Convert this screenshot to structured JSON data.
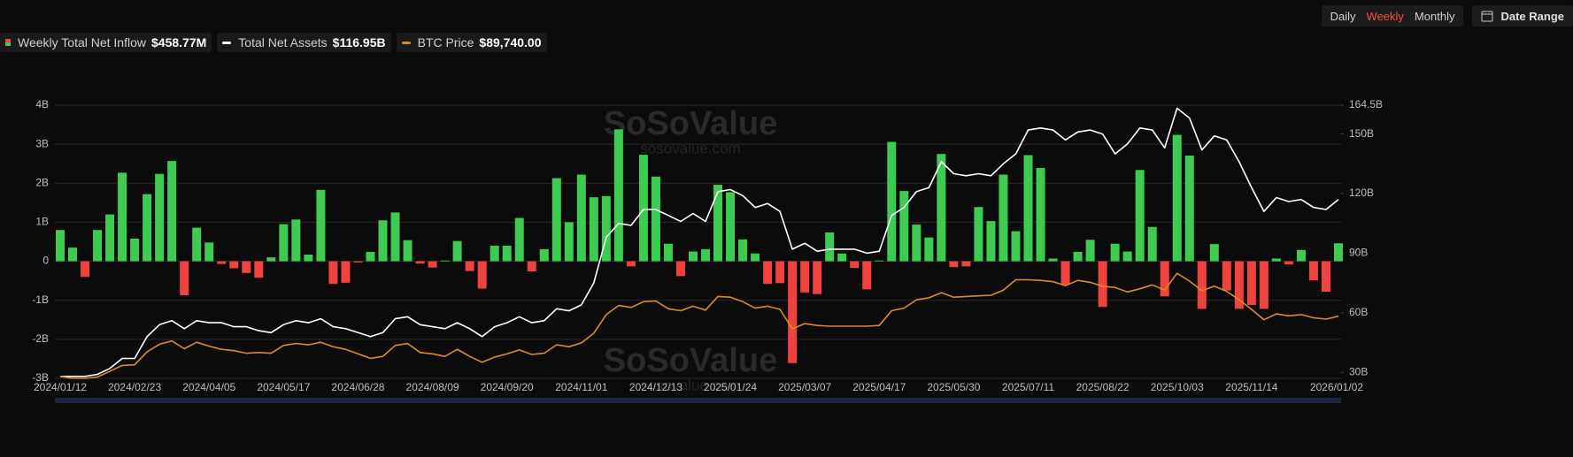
{
  "ui": {
    "periods": [
      "Daily",
      "Weekly",
      "Monthly"
    ],
    "active_period": 1,
    "date_range": "Date Range"
  },
  "chart_data": {
    "type": "combo",
    "watermark": [
      "SoSoValue",
      "sosovalue.com"
    ],
    "categories": [
      "2024/01/12",
      null,
      null,
      null,
      null,
      null,
      "2024/02/23",
      null,
      null,
      null,
      null,
      null,
      "2024/04/05",
      null,
      null,
      null,
      null,
      null,
      "2024/05/17",
      null,
      null,
      null,
      null,
      null,
      "2024/06/28",
      null,
      null,
      null,
      null,
      null,
      "2024/08/09",
      null,
      null,
      null,
      null,
      null,
      "2024/09/20",
      null,
      null,
      null,
      null,
      null,
      "2024/11/01",
      null,
      null,
      null,
      null,
      null,
      "2024/12/13",
      null,
      null,
      null,
      null,
      null,
      "2025/01/24",
      null,
      null,
      null,
      null,
      null,
      "2025/03/07",
      null,
      null,
      null,
      null,
      null,
      "2025/04/17",
      null,
      null,
      null,
      null,
      null,
      "2025/05/30",
      null,
      null,
      null,
      null,
      null,
      "2025/07/11",
      null,
      null,
      null,
      null,
      null,
      "2025/08/22",
      null,
      null,
      null,
      null,
      null,
      "2025/10/03",
      null,
      null,
      null,
      null,
      null,
      "2025/11/14",
      null,
      null,
      null,
      null,
      null,
      null,
      "2026/01/02"
    ],
    "ylim": [
      -3,
      4
    ],
    "yticks": [
      {
        "value": -3,
        "label": "-3B"
      },
      {
        "value": -2,
        "label": "-2B"
      },
      {
        "value": -1,
        "label": "-1B"
      },
      0,
      {
        "value": 1,
        "label": "1B"
      },
      {
        "value": 2,
        "label": "2B"
      },
      {
        "value": 3,
        "label": "3B"
      },
      {
        "value": 4,
        "label": "4B"
      }
    ],
    "y2lim": [
      27,
      164.5
    ],
    "y2ticks": [
      {
        "value": 30,
        "label": "30B"
      },
      {
        "value": 60,
        "label": "60B"
      },
      {
        "value": 90,
        "label": "90B"
      },
      {
        "value": 120,
        "label": "120B"
      },
      {
        "value": 150,
        "label": "150B"
      },
      {
        "value": 164.5,
        "label": "164.5B"
      }
    ],
    "y3lim": [
      41500,
      253500
    ],
    "grid": true,
    "series": [
      {
        "name": "Weekly Total Net Inflow",
        "legend_value": "$458.77M",
        "type": "bar",
        "color": "#3dcc4f",
        "negative_color": "#f0433f",
        "values": [
          0.8,
          0.35,
          -0.4,
          0.8,
          1.2,
          2.27,
          0.58,
          1.72,
          2.24,
          2.57,
          -0.87,
          0.86,
          0.48,
          -0.07,
          -0.18,
          -0.3,
          -0.42,
          0.1,
          0.95,
          1.07,
          0.17,
          1.83,
          -0.58,
          -0.55,
          -0.03,
          0.24,
          1.05,
          1.25,
          0.54,
          -0.06,
          -0.16,
          0.02,
          0.52,
          -0.25,
          -0.7,
          0.4,
          0.4,
          1.11,
          -0.26,
          0.31,
          2.13,
          1.0,
          2.22,
          1.64,
          1.67,
          3.38,
          -0.13,
          2.73,
          2.17,
          0.45,
          -0.38,
          0.25,
          0.31,
          1.96,
          1.77,
          0.56,
          0.2,
          -0.58,
          -0.56,
          -2.61,
          -0.8,
          -0.84,
          0.74,
          0.2,
          -0.17,
          -0.72,
          0.02,
          3.06,
          1.8,
          0.94,
          0.61,
          2.75,
          -0.15,
          -0.13,
          1.39,
          1.03,
          2.22,
          0.77,
          2.72,
          2.39,
          0.07,
          -0.6,
          0.24,
          0.55,
          -1.17,
          0.45,
          0.25,
          2.34,
          0.88,
          -0.9,
          3.24,
          2.71,
          -1.22,
          0.44,
          -0.75,
          -1.22,
          -1.12,
          -1.22,
          0.07,
          -0.08,
          0.29,
          -0.49,
          -0.78,
          0.46
        ]
      },
      {
        "name": "Total Net Assets",
        "legend_value": "$116.95B",
        "type": "line",
        "axis": "y2",
        "color": "#ffffff",
        "values": [
          28,
          28,
          28,
          29,
          32,
          37,
          37,
          48,
          54,
          56,
          52,
          56,
          55,
          55,
          53,
          53,
          51,
          50,
          54,
          56,
          55,
          57,
          53,
          52,
          50,
          48,
          50,
          57,
          58,
          54,
          53,
          52,
          55,
          52,
          48,
          53,
          55,
          58,
          55,
          56,
          62,
          61,
          64,
          75,
          98,
          105,
          104,
          112,
          112,
          109,
          106,
          110,
          106,
          121,
          122,
          119,
          113,
          115,
          111,
          92,
          95,
          91,
          92,
          92,
          92,
          90,
          91,
          109,
          113,
          121,
          123,
          136,
          130,
          129,
          130,
          129,
          135,
          140,
          152,
          153,
          152,
          147,
          151,
          152,
          150,
          140,
          145,
          153,
          152,
          143,
          163,
          158,
          142,
          149,
          147,
          136,
          123,
          111,
          118,
          116,
          117,
          113,
          112,
          117
        ]
      },
      {
        "name": "BTC Price",
        "legend_value": "$89,740.00",
        "type": "line",
        "axis": "y3",
        "color": "#d98c26",
        "values": [
          43000,
          41500,
          41500,
          42500,
          47000,
          51500,
          52000,
          62000,
          68000,
          70500,
          64500,
          69500,
          66500,
          64000,
          63000,
          61000,
          61500,
          61000,
          67000,
          68500,
          67500,
          69500,
          66000,
          64000,
          60500,
          57000,
          58500,
          67000,
          68500,
          61500,
          60500,
          58500,
          64000,
          58500,
          54000,
          58000,
          60500,
          63500,
          60000,
          61000,
          67500,
          66000,
          69000,
          76500,
          91000,
          98000,
          96500,
          101000,
          101500,
          95500,
          94000,
          97500,
          94500,
          105000,
          104500,
          101000,
          96000,
          97500,
          95000,
          80000,
          84000,
          82500,
          82000,
          82000,
          82000,
          82000,
          82500,
          94000,
          96000,
          102500,
          104000,
          108000,
          104500,
          105000,
          105500,
          106000,
          110000,
          118000,
          118000,
          117500,
          116500,
          113500,
          117500,
          116000,
          113000,
          112000,
          108500,
          111000,
          114000,
          110000,
          123000,
          117000,
          109500,
          113000,
          109000,
          102500,
          95000,
          87000,
          91500,
          90000,
          91000,
          88500,
          87500,
          89740
        ]
      }
    ]
  }
}
